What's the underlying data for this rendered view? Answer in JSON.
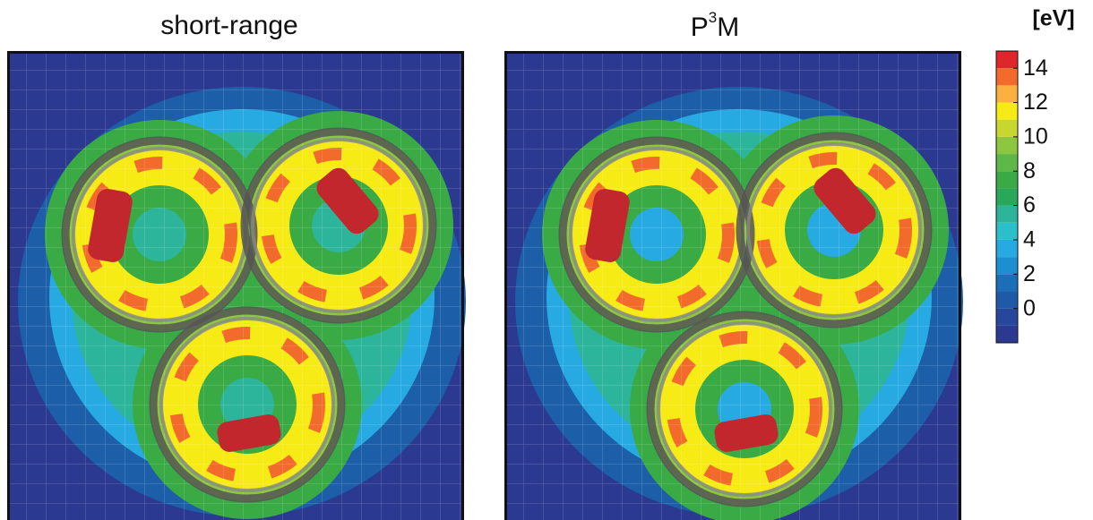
{
  "panels": [
    {
      "title": "short-range"
    },
    {
      "title": {
        "base": "P",
        "sup": "3",
        "rest": "M"
      }
    }
  ],
  "colorbar": {
    "label": "[eV]",
    "ticks": [
      0,
      2,
      4,
      6,
      8,
      10,
      12,
      14
    ],
    "range": [
      -2,
      15
    ],
    "colors": [
      "#2b3990",
      "#26479c",
      "#1f5aa8",
      "#1b6fb8",
      "#1c8fd0",
      "#27aae1",
      "#2bbfc9",
      "#2cb59a",
      "#2aa85a",
      "#3aaa45",
      "#5db847",
      "#8dc63f",
      "#c8d630",
      "#f6eb14",
      "#fbb040",
      "#f26a2c",
      "#e0262a"
    ]
  }
}
